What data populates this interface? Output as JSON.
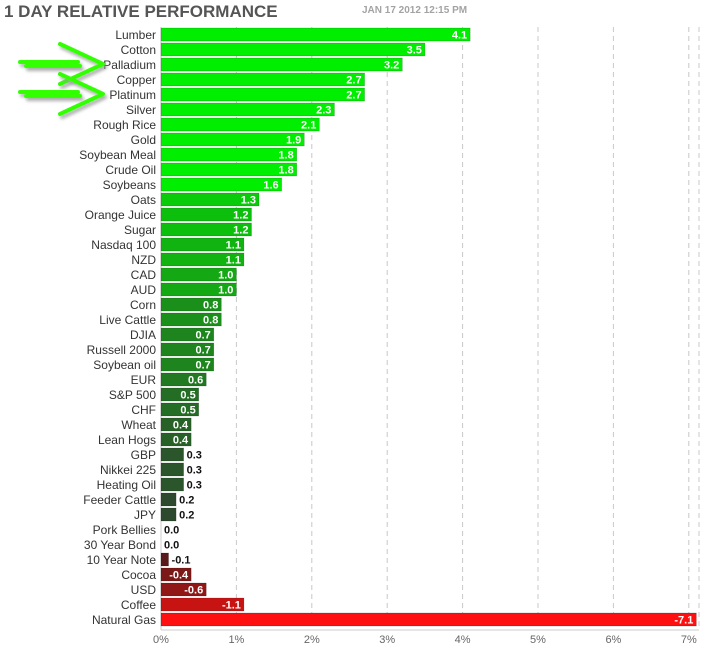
{
  "chart_data": {
    "type": "bar",
    "orientation": "horizontal",
    "title": "1 DAY RELATIVE PERFORMANCE",
    "subtitle": "JAN 17 2012 12:15 PM",
    "categories": [
      "Lumber",
      "Cotton",
      "Palladium",
      "Copper",
      "Platinum",
      "Silver",
      "Rough Rice",
      "Gold",
      "Soybean Meal",
      "Crude Oil",
      "Soybeans",
      "Oats",
      "Orange Juice",
      "Sugar",
      "Nasdaq 100",
      "NZD",
      "CAD",
      "AUD",
      "Corn",
      "Live Cattle",
      "DJIA",
      "Russell 2000",
      "Soybean oil",
      "EUR",
      "S&P 500",
      "CHF",
      "Wheat",
      "Lean Hogs",
      "GBP",
      "Nikkei 225",
      "Heating Oil",
      "Feeder Cattle",
      "JPY",
      "Pork Bellies",
      "30 Year Bond",
      "10 Year Note",
      "Cocoa",
      "USD",
      "Coffee",
      "Natural Gas"
    ],
    "values": [
      4.1,
      3.5,
      3.2,
      2.7,
      2.7,
      2.3,
      2.1,
      1.9,
      1.8,
      1.8,
      1.6,
      1.3,
      1.2,
      1.2,
      1.1,
      1.1,
      1.0,
      1.0,
      0.8,
      0.8,
      0.7,
      0.7,
      0.7,
      0.6,
      0.5,
      0.5,
      0.4,
      0.4,
      0.3,
      0.3,
      0.3,
      0.2,
      0.2,
      0.0,
      0.0,
      -0.1,
      -0.4,
      -0.6,
      -1.1,
      -7.1
    ],
    "value_labels": [
      "4.1",
      "3.5",
      "3.2",
      "2.7",
      "2.7",
      "2.3",
      "2.1",
      "1.9",
      "1.8",
      "1.8",
      "1.6",
      "1.3",
      "1.2",
      "1.2",
      "1.1",
      "1.1",
      "1.0",
      "1.0",
      "0.8",
      "0.8",
      "0.7",
      "0.7",
      "0.7",
      "0.6",
      "0.5",
      "0.5",
      "0.4",
      "0.4",
      "0.3",
      "0.3",
      "0.3",
      "0.2",
      "0.2",
      "0.0",
      "0.0",
      "-0.1",
      "-0.4",
      "-0.6",
      "-1.1",
      "-7.1"
    ],
    "x_ticks": [
      "0%",
      "1%",
      "2%",
      "3%",
      "4%",
      "5%",
      "6%",
      "7%"
    ],
    "xlim": [
      0,
      7
    ],
    "x_scale": "absolute value",
    "grid": "vertical dashed",
    "highlighted": [
      "Palladium",
      "Platinum"
    ],
    "colors": {
      "positive_strong": "#00ee00",
      "positive_weak": "#2e4a2e",
      "negative_weak": "#5a1a1a",
      "negative_strong": "#ff1010",
      "highlight_arrow": "#33ff00"
    }
  }
}
